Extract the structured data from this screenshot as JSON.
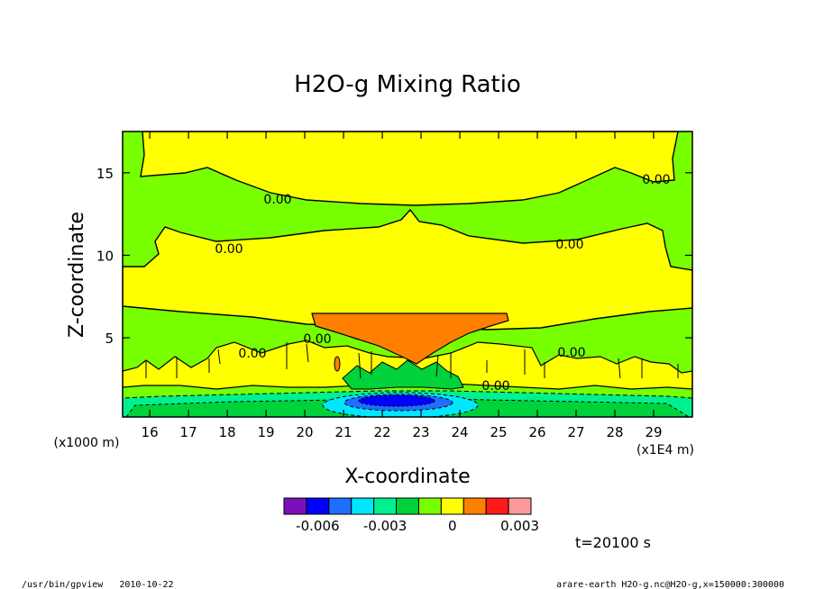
{
  "chart_data": {
    "type": "contour",
    "title": "H2O-g Mixing Ratio",
    "xlabel": "X-coordinate",
    "ylabel": "Z-coordinate",
    "x_unit": "(x1E4 m)",
    "y_unit": "(x1000 m)",
    "xlim": [
      15.3,
      30.0
    ],
    "ylim": [
      0.2,
      17.5
    ],
    "x_ticks": [
      16,
      17,
      18,
      19,
      20,
      21,
      22,
      23,
      24,
      25,
      26,
      27,
      28,
      29
    ],
    "y_ticks": [
      5,
      10,
      15
    ],
    "contour_labels": [
      {
        "text": "0.00",
        "x": 18.3,
        "y": 14.2
      },
      {
        "text": "0.00",
        "x": 29.0,
        "y": 15.2
      },
      {
        "text": "0.00",
        "x": 17.8,
        "y": 9.5
      },
      {
        "text": "0.00",
        "x": 28.0,
        "y": 9.6
      },
      {
        "text": "0.00",
        "x": 20.2,
        "y": 4.8
      },
      {
        "text": "0.00",
        "x": 26.8,
        "y": 4.3
      },
      {
        "text": "0.00",
        "x": 19.3,
        "y": 3.6
      },
      {
        "text": "0.00",
        "x": 24.8,
        "y": 2.2
      }
    ],
    "colorbar": {
      "colors": [
        "#7b10b8",
        "#0000ff",
        "#1e6eff",
        "#00e6ff",
        "#00f090",
        "#00d23c",
        "#78ff00",
        "#ffff00",
        "#ff8000",
        "#ff1a1a",
        "#ff9a9a"
      ],
      "tick_labels": [
        "-0.006",
        "-0.003",
        "0",
        "0.003"
      ],
      "tick_values": [
        -0.006,
        -0.003,
        0,
        0.003
      ],
      "range": [
        -0.0075,
        0.0035
      ]
    },
    "time_label": "t=20100 s"
  },
  "footer": {
    "left": "/usr/bin/gpview   2010-10-22",
    "right": "arare-earth_H2O-g.nc@H2O-g,x=150000:300000"
  }
}
